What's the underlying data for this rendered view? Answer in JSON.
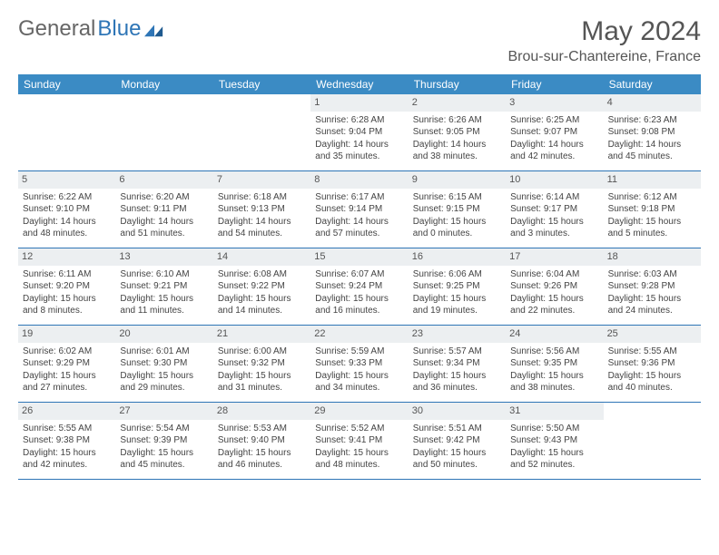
{
  "logo": {
    "part1": "General",
    "part2": "Blue"
  },
  "title": "May 2024",
  "location": "Brou-sur-Chantereine, France",
  "colors": {
    "header_bg": "#3b8bc4",
    "header_text": "#ffffff",
    "border": "#2e75b6",
    "daynum_bg": "#eceff1",
    "text": "#444444",
    "logo_gray": "#666666",
    "logo_blue": "#2e75b6",
    "page_bg": "#ffffff"
  },
  "day_names": [
    "Sunday",
    "Monday",
    "Tuesday",
    "Wednesday",
    "Thursday",
    "Friday",
    "Saturday"
  ],
  "weeks": [
    [
      {
        "empty": true
      },
      {
        "empty": true
      },
      {
        "empty": true
      },
      {
        "n": "1",
        "sunrise": "6:28 AM",
        "sunset": "9:04 PM",
        "daylight": "14 hours and 35 minutes."
      },
      {
        "n": "2",
        "sunrise": "6:26 AM",
        "sunset": "9:05 PM",
        "daylight": "14 hours and 38 minutes."
      },
      {
        "n": "3",
        "sunrise": "6:25 AM",
        "sunset": "9:07 PM",
        "daylight": "14 hours and 42 minutes."
      },
      {
        "n": "4",
        "sunrise": "6:23 AM",
        "sunset": "9:08 PM",
        "daylight": "14 hours and 45 minutes."
      }
    ],
    [
      {
        "n": "5",
        "sunrise": "6:22 AM",
        "sunset": "9:10 PM",
        "daylight": "14 hours and 48 minutes."
      },
      {
        "n": "6",
        "sunrise": "6:20 AM",
        "sunset": "9:11 PM",
        "daylight": "14 hours and 51 minutes."
      },
      {
        "n": "7",
        "sunrise": "6:18 AM",
        "sunset": "9:13 PM",
        "daylight": "14 hours and 54 minutes."
      },
      {
        "n": "8",
        "sunrise": "6:17 AM",
        "sunset": "9:14 PM",
        "daylight": "14 hours and 57 minutes."
      },
      {
        "n": "9",
        "sunrise": "6:15 AM",
        "sunset": "9:15 PM",
        "daylight": "15 hours and 0 minutes."
      },
      {
        "n": "10",
        "sunrise": "6:14 AM",
        "sunset": "9:17 PM",
        "daylight": "15 hours and 3 minutes."
      },
      {
        "n": "11",
        "sunrise": "6:12 AM",
        "sunset": "9:18 PM",
        "daylight": "15 hours and 5 minutes."
      }
    ],
    [
      {
        "n": "12",
        "sunrise": "6:11 AM",
        "sunset": "9:20 PM",
        "daylight": "15 hours and 8 minutes."
      },
      {
        "n": "13",
        "sunrise": "6:10 AM",
        "sunset": "9:21 PM",
        "daylight": "15 hours and 11 minutes."
      },
      {
        "n": "14",
        "sunrise": "6:08 AM",
        "sunset": "9:22 PM",
        "daylight": "15 hours and 14 minutes."
      },
      {
        "n": "15",
        "sunrise": "6:07 AM",
        "sunset": "9:24 PM",
        "daylight": "15 hours and 16 minutes."
      },
      {
        "n": "16",
        "sunrise": "6:06 AM",
        "sunset": "9:25 PM",
        "daylight": "15 hours and 19 minutes."
      },
      {
        "n": "17",
        "sunrise": "6:04 AM",
        "sunset": "9:26 PM",
        "daylight": "15 hours and 22 minutes."
      },
      {
        "n": "18",
        "sunrise": "6:03 AM",
        "sunset": "9:28 PM",
        "daylight": "15 hours and 24 minutes."
      }
    ],
    [
      {
        "n": "19",
        "sunrise": "6:02 AM",
        "sunset": "9:29 PM",
        "daylight": "15 hours and 27 minutes."
      },
      {
        "n": "20",
        "sunrise": "6:01 AM",
        "sunset": "9:30 PM",
        "daylight": "15 hours and 29 minutes."
      },
      {
        "n": "21",
        "sunrise": "6:00 AM",
        "sunset": "9:32 PM",
        "daylight": "15 hours and 31 minutes."
      },
      {
        "n": "22",
        "sunrise": "5:59 AM",
        "sunset": "9:33 PM",
        "daylight": "15 hours and 34 minutes."
      },
      {
        "n": "23",
        "sunrise": "5:57 AM",
        "sunset": "9:34 PM",
        "daylight": "15 hours and 36 minutes."
      },
      {
        "n": "24",
        "sunrise": "5:56 AM",
        "sunset": "9:35 PM",
        "daylight": "15 hours and 38 minutes."
      },
      {
        "n": "25",
        "sunrise": "5:55 AM",
        "sunset": "9:36 PM",
        "daylight": "15 hours and 40 minutes."
      }
    ],
    [
      {
        "n": "26",
        "sunrise": "5:55 AM",
        "sunset": "9:38 PM",
        "daylight": "15 hours and 42 minutes."
      },
      {
        "n": "27",
        "sunrise": "5:54 AM",
        "sunset": "9:39 PM",
        "daylight": "15 hours and 45 minutes."
      },
      {
        "n": "28",
        "sunrise": "5:53 AM",
        "sunset": "9:40 PM",
        "daylight": "15 hours and 46 minutes."
      },
      {
        "n": "29",
        "sunrise": "5:52 AM",
        "sunset": "9:41 PM",
        "daylight": "15 hours and 48 minutes."
      },
      {
        "n": "30",
        "sunrise": "5:51 AM",
        "sunset": "9:42 PM",
        "daylight": "15 hours and 50 minutes."
      },
      {
        "n": "31",
        "sunrise": "5:50 AM",
        "sunset": "9:43 PM",
        "daylight": "15 hours and 52 minutes."
      },
      {
        "empty": true
      }
    ]
  ],
  "labels": {
    "sunrise_prefix": "Sunrise: ",
    "sunset_prefix": "Sunset: ",
    "daylight_prefix": "Daylight: "
  }
}
